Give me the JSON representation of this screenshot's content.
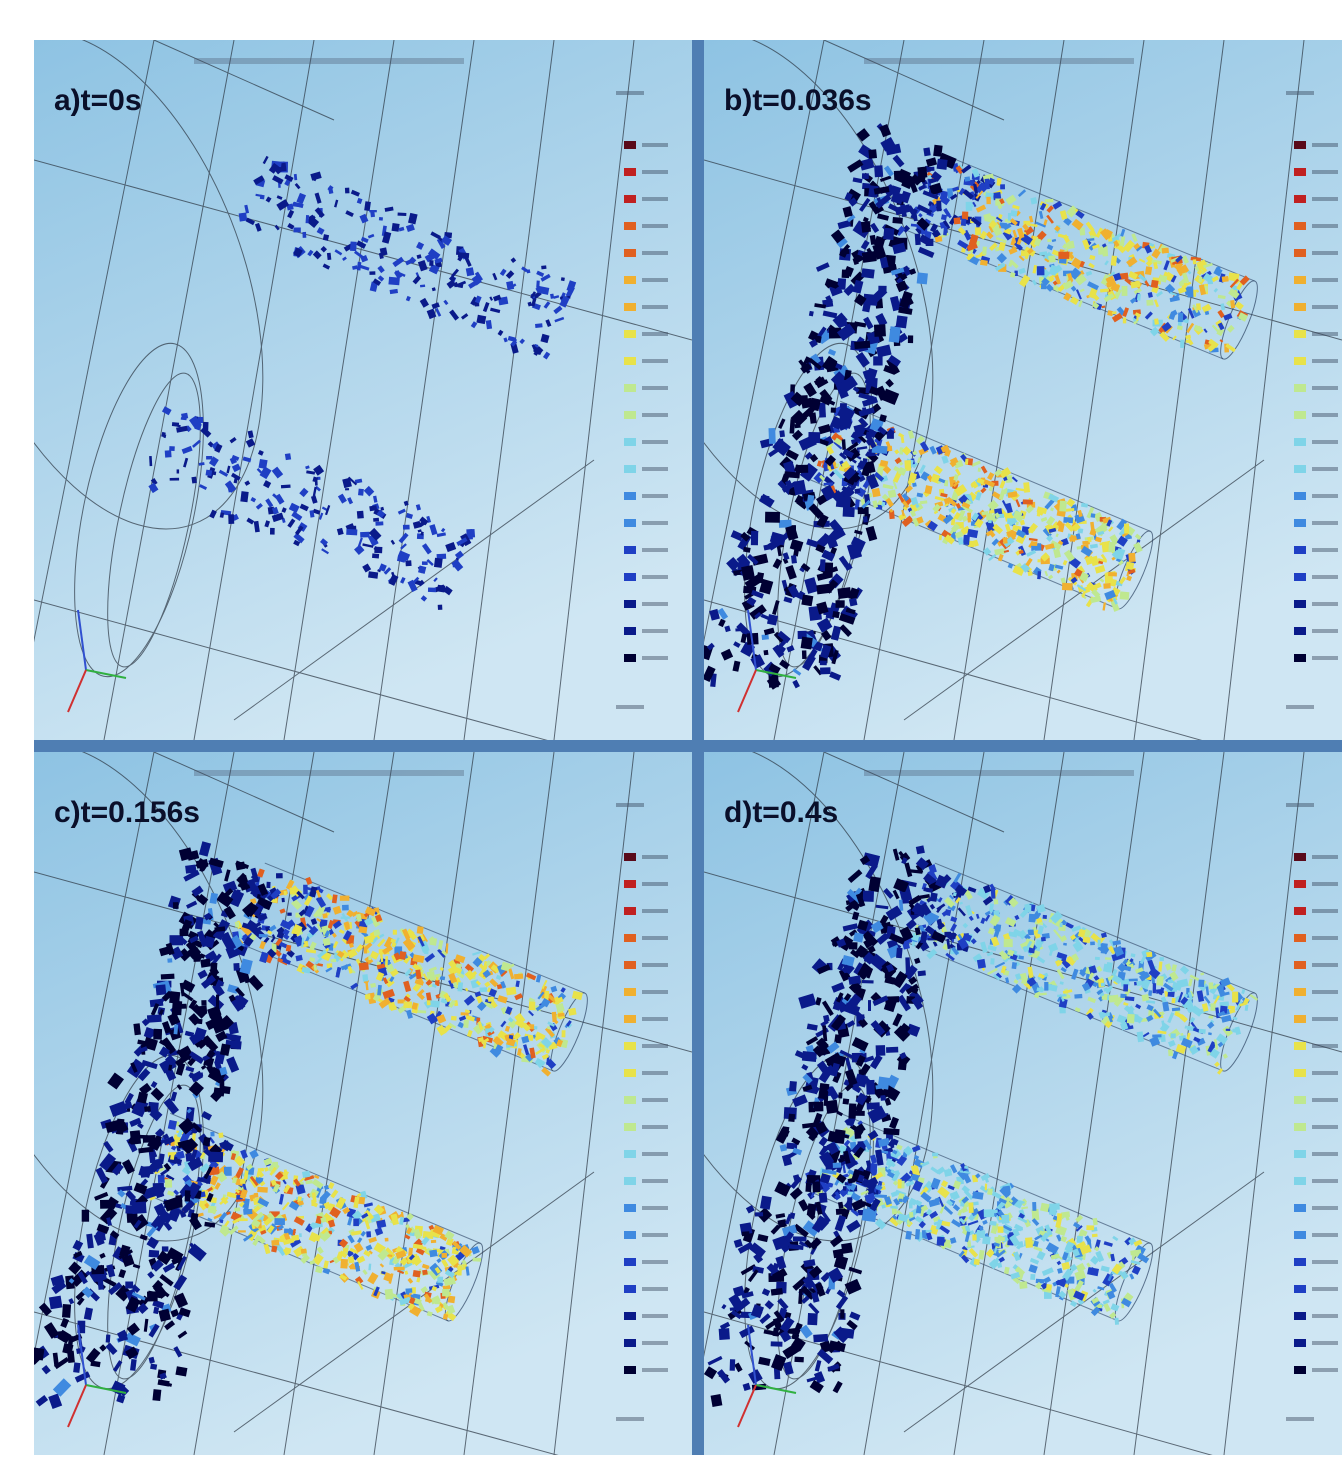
{
  "panels": [
    {
      "label": "a)t=0s",
      "state": "initial"
    },
    {
      "label": "b)t=0.036s",
      "state": "spreading"
    },
    {
      "label": "c)t=0.156s",
      "state": "spreading"
    },
    {
      "label": "d)t=0.4s",
      "state": "late"
    }
  ],
  "colors": {
    "background_top": "#8ec3e3",
    "background_bottom": "#cfe6f3",
    "frame": "#4f7eb3",
    "colormap": [
      "#000033",
      "#0a1a8a",
      "#1f3fc4",
      "#3f8ae0",
      "#7fd4e8",
      "#bfe890",
      "#e8e24a",
      "#f0b030",
      "#e06020",
      "#c02020",
      "#5a0a1a"
    ]
  },
  "icons": [
    "axis-triad-icon",
    "colorbar-icon"
  ]
}
